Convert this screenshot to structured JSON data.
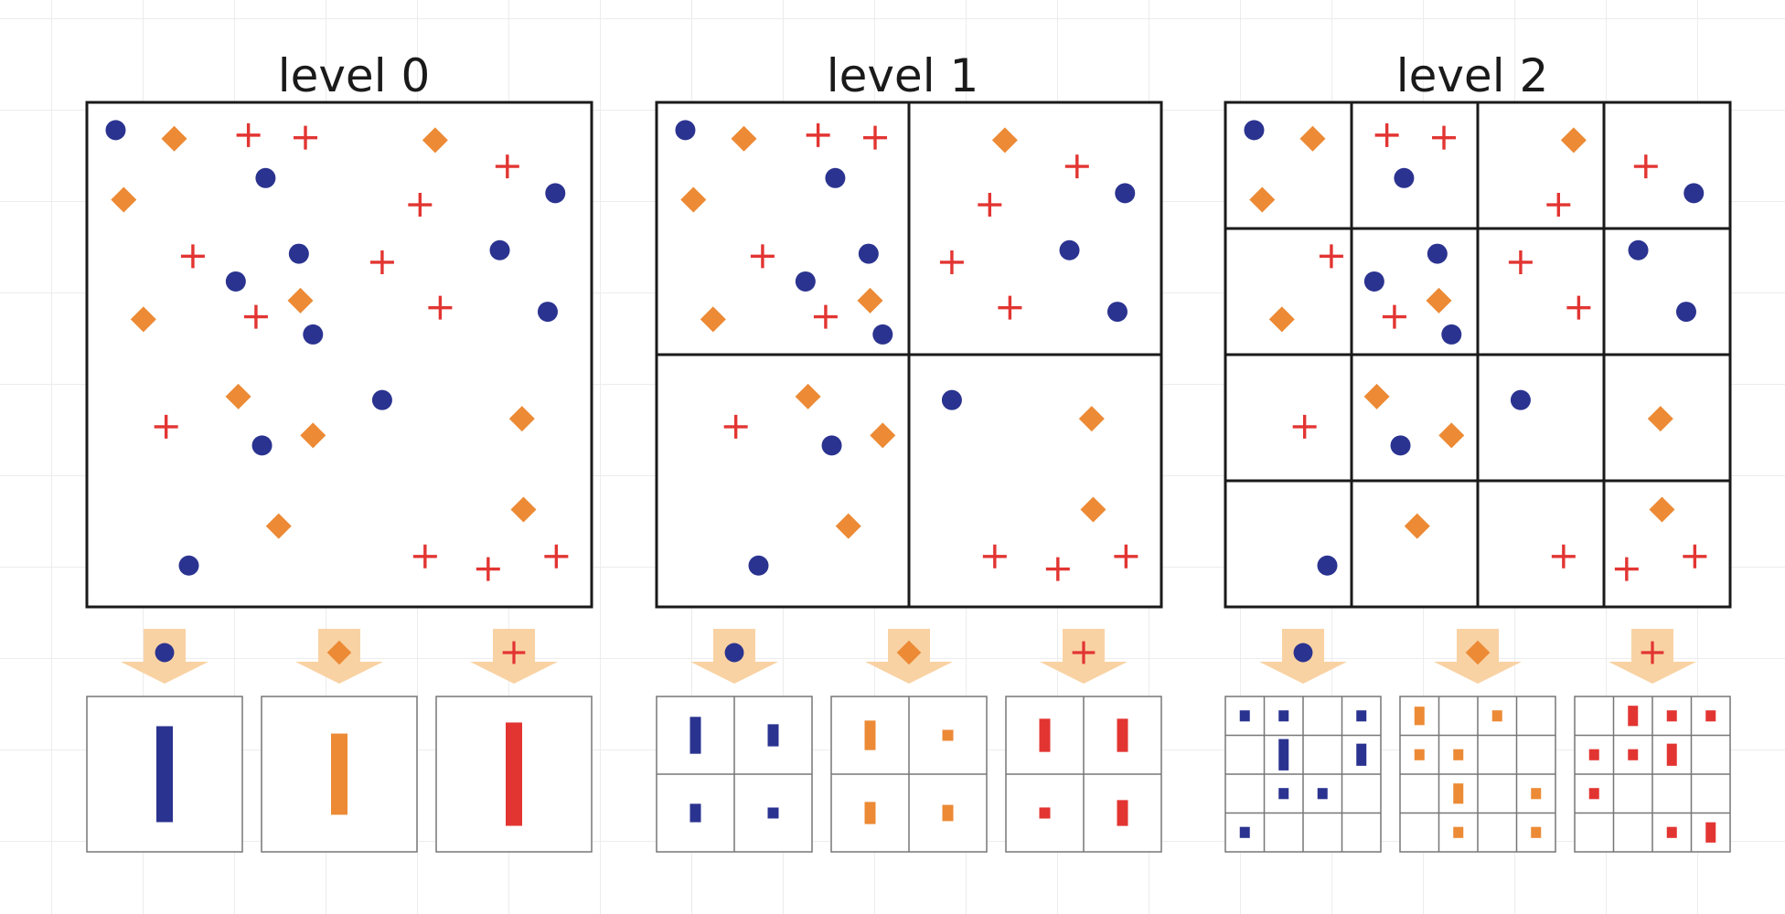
{
  "colors": {
    "circle": "#2b3390",
    "diamond": "#ec8a35",
    "cross": "#e23532",
    "arrow": "#f9d2a3"
  },
  "levels": [
    {
      "title": "level 0",
      "grid": 1,
      "bars": {
        "circle": [
          [
            0.65
          ]
        ],
        "diamond": [
          [
            0.55
          ]
        ],
        "cross": [
          [
            0.7
          ]
        ]
      }
    },
    {
      "title": "level 1",
      "grid": 2,
      "bars": {
        "circle": [
          [
            0.5,
            0.3
          ],
          [
            0.25,
            0.13
          ]
        ],
        "diamond": [
          [
            0.4,
            0.12
          ],
          [
            0.3,
            0.22
          ]
        ],
        "cross": [
          [
            0.45,
            0.45
          ],
          [
            0.15,
            0.35
          ]
        ]
      }
    },
    {
      "title": "level 2",
      "grid": 4,
      "bars": {
        "circle": [
          [
            0.3,
            0.3,
            0,
            0.3
          ],
          [
            0,
            0.85,
            0,
            0.6
          ],
          [
            0,
            0.3,
            0.3,
            0
          ],
          [
            0.3,
            0,
            0,
            0
          ]
        ],
        "diamond": [
          [
            0.5,
            0,
            0.3,
            0
          ],
          [
            0.3,
            0.3,
            0,
            0
          ],
          [
            0,
            0.55,
            0,
            0.3
          ],
          [
            0,
            0.3,
            0,
            0.3
          ]
        ],
        "cross": [
          [
            0,
            0.55,
            0.3,
            0.3
          ],
          [
            0.3,
            0.3,
            0.6,
            0
          ],
          [
            0.3,
            0,
            0,
            0
          ],
          [
            0,
            0,
            0.3,
            0.55
          ]
        ]
      }
    }
  ],
  "points": [
    {
      "t": "circle",
      "x": 0.057,
      "y": 0.055
    },
    {
      "t": "circle",
      "x": 0.354,
      "y": 0.15
    },
    {
      "t": "circle",
      "x": 0.928,
      "y": 0.18
    },
    {
      "t": "circle",
      "x": 0.42,
      "y": 0.3
    },
    {
      "t": "circle",
      "x": 0.295,
      "y": 0.355
    },
    {
      "t": "circle",
      "x": 0.818,
      "y": 0.293
    },
    {
      "t": "circle",
      "x": 0.448,
      "y": 0.46
    },
    {
      "t": "circle",
      "x": 0.913,
      "y": 0.415
    },
    {
      "t": "circle",
      "x": 0.585,
      "y": 0.59
    },
    {
      "t": "circle",
      "x": 0.347,
      "y": 0.68
    },
    {
      "t": "circle",
      "x": 0.202,
      "y": 0.918
    },
    {
      "t": "diamond",
      "x": 0.173,
      "y": 0.072
    },
    {
      "t": "diamond",
      "x": 0.69,
      "y": 0.075
    },
    {
      "t": "diamond",
      "x": 0.073,
      "y": 0.193
    },
    {
      "t": "diamond",
      "x": 0.423,
      "y": 0.393
    },
    {
      "t": "diamond",
      "x": 0.112,
      "y": 0.43
    },
    {
      "t": "diamond",
      "x": 0.3,
      "y": 0.583
    },
    {
      "t": "diamond",
      "x": 0.448,
      "y": 0.66
    },
    {
      "t": "diamond",
      "x": 0.862,
      "y": 0.627
    },
    {
      "t": "diamond",
      "x": 0.38,
      "y": 0.84
    },
    {
      "t": "diamond",
      "x": 0.865,
      "y": 0.807
    },
    {
      "t": "cross",
      "x": 0.32,
      "y": 0.065
    },
    {
      "t": "cross",
      "x": 0.433,
      "y": 0.07
    },
    {
      "t": "cross",
      "x": 0.833,
      "y": 0.127
    },
    {
      "t": "cross",
      "x": 0.66,
      "y": 0.203
    },
    {
      "t": "cross",
      "x": 0.21,
      "y": 0.305
    },
    {
      "t": "cross",
      "x": 0.585,
      "y": 0.317
    },
    {
      "t": "cross",
      "x": 0.335,
      "y": 0.425
    },
    {
      "t": "cross",
      "x": 0.7,
      "y": 0.407
    },
    {
      "t": "cross",
      "x": 0.157,
      "y": 0.643
    },
    {
      "t": "cross",
      "x": 0.67,
      "y": 0.9
    },
    {
      "t": "cross",
      "x": 0.795,
      "y": 0.925
    },
    {
      "t": "cross",
      "x": 0.93,
      "y": 0.9
    }
  ]
}
